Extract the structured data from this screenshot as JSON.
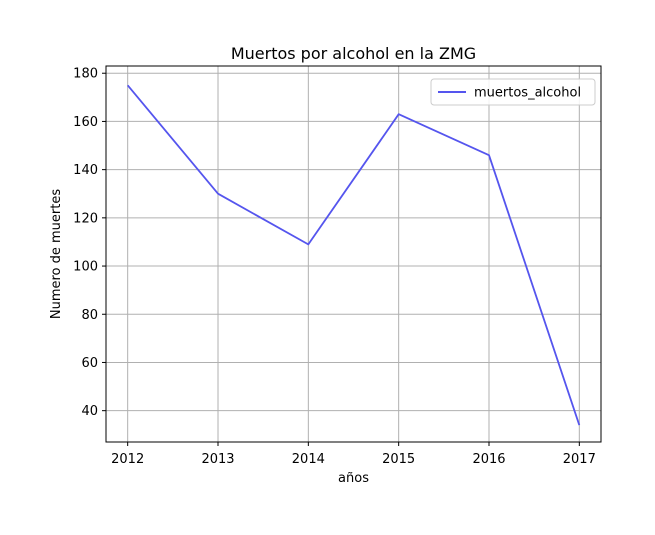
{
  "chart_data": {
    "type": "line",
    "title": "Muertos por alcohol en la ZMG",
    "xlabel": "años",
    "ylabel": "Numero de muertes",
    "x": [
      2012,
      2013,
      2014,
      2015,
      2016,
      2017
    ],
    "series": [
      {
        "name": "muertos_alcohol",
        "values": [
          175,
          130,
          109,
          163,
          146,
          34
        ],
        "color": "#5555ee"
      }
    ],
    "xlim": [
      2011.76,
      2017.24
    ],
    "ylim": [
      27,
      183
    ],
    "yticks": [
      40,
      60,
      80,
      100,
      120,
      140,
      160,
      180
    ],
    "xticks": [
      2012,
      2013,
      2014,
      2015,
      2016,
      2017
    ],
    "grid": true,
    "legend_position": "top-right"
  }
}
